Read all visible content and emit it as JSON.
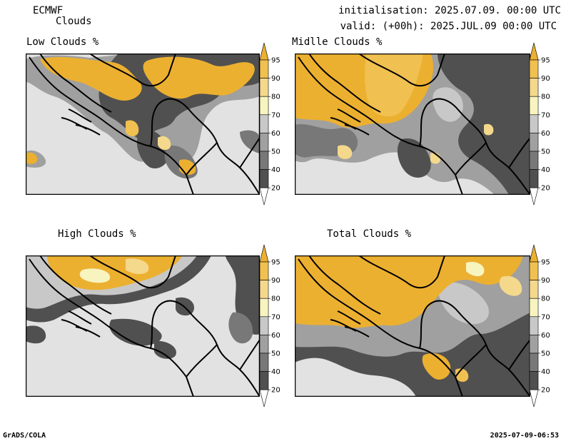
{
  "header": {
    "model": "ECMWF",
    "field": "Clouds",
    "initialisation": "initialisation: 2025.07.09. 00:00 UTC",
    "valid": "valid: (+00h): 2025.JUL.09 00:00 UTC"
  },
  "panels": [
    {
      "title": "Low Clouds %"
    },
    {
      "title": "Midlle Clouds %"
    },
    {
      "title": "High Clouds %"
    },
    {
      "title": "Total Clouds %"
    }
  ],
  "colorbar": {
    "levels": [
      "20",
      "40",
      "50",
      "60",
      "70",
      "80",
      "90",
      "95"
    ],
    "colors": {
      "below20": "#ffffff",
      "c20_40": "#505050",
      "c40_50": "#787878",
      "c50_60": "#a0a0a0",
      "c60_70": "#c8c8c8",
      "c70_80": "#f8f4c0",
      "c80_90": "#f4d88c",
      "c90_95": "#f0c050",
      "c95_up": "#ecb030"
    }
  },
  "footer": {
    "left": "GrADS/COLA",
    "right": "2025-07-09-06:53"
  }
}
